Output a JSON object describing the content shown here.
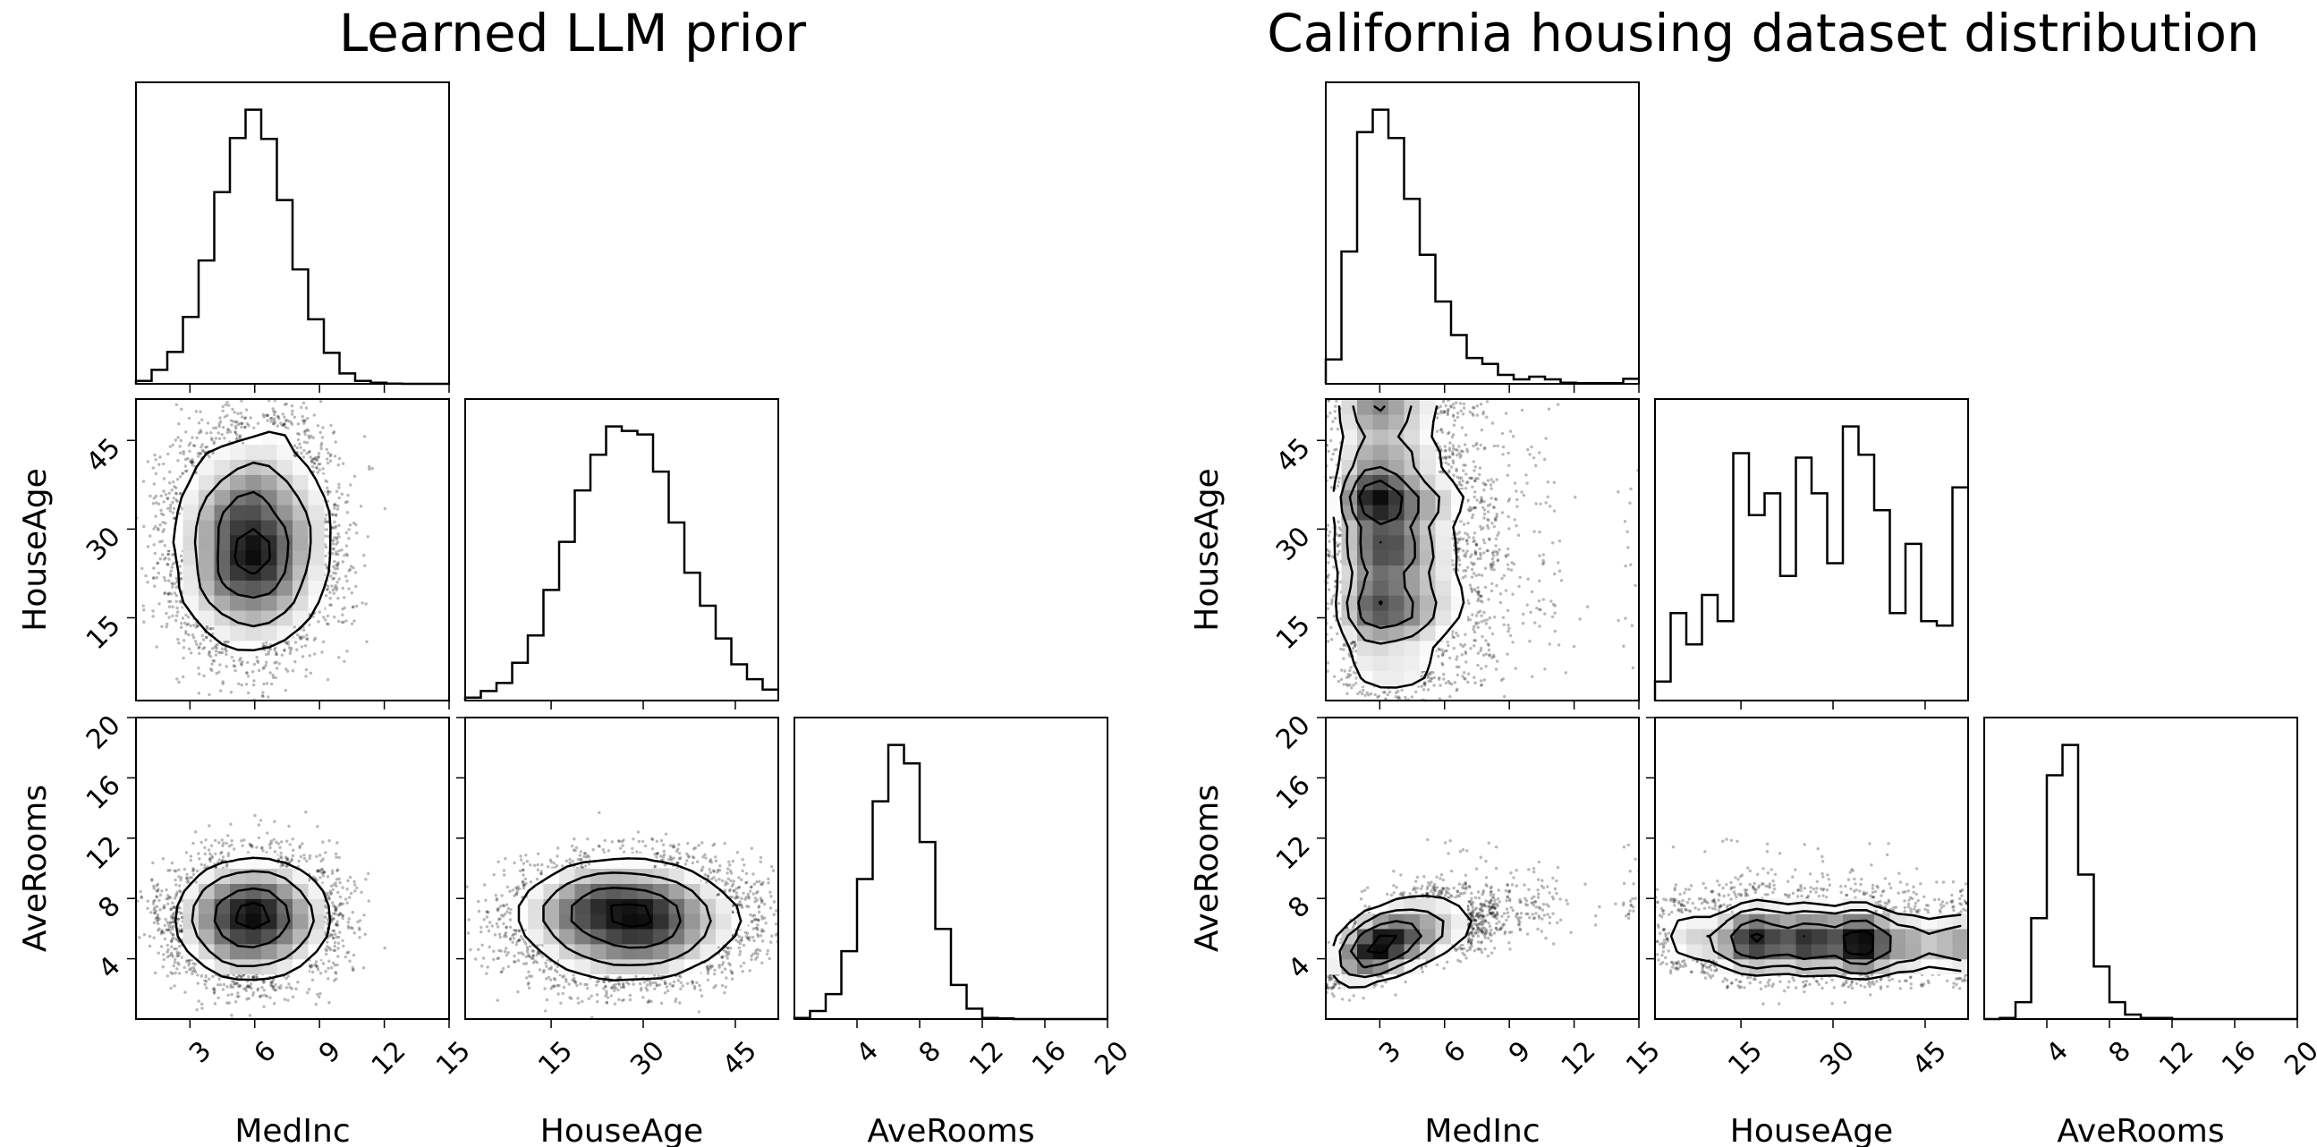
{
  "chart_data": [
    {
      "type": "corner",
      "title": "Learned LLM prior",
      "contour_levels_sigma": [
        0.5,
        1,
        1.5,
        2
      ],
      "variables": [
        {
          "name": "MedInc",
          "range": [
            0.5,
            15
          ],
          "ticks": [
            3,
            6,
            9,
            12,
            15
          ],
          "hist_counts": [
            10,
            47,
            107,
            225,
            415,
            645,
            827,
            922,
            824,
            618,
            385,
            217,
            104,
            35,
            10,
            4,
            1,
            0,
            0,
            0
          ]
        },
        {
          "name": "HouseAge",
          "range": [
            1,
            52
          ],
          "ticks": [
            15,
            30,
            45
          ],
          "hist_counts": [
            10,
            32,
            59,
            127,
            219,
            372,
            534,
            707,
            827,
            922,
            907,
            895,
            770,
            599,
            430,
            319,
            209,
            122,
            72,
            37
          ]
        },
        {
          "name": "AveRooms",
          "range": [
            0,
            20
          ],
          "ticks": [
            4,
            8,
            12,
            16,
            20
          ],
          "hist_counts": [
            4,
            27,
            84,
            229,
            472,
            734,
            924,
            862,
            597,
            304,
            115,
            35,
            4,
            2,
            0,
            0,
            0,
            0,
            0,
            0
          ]
        }
      ],
      "pairs": [
        {
          "x": "MedInc",
          "y": "HouseAge",
          "correlation": 0.0
        },
        {
          "x": "MedInc",
          "y": "AveRooms",
          "correlation": 0.0
        },
        {
          "x": "HouseAge",
          "y": "AveRooms",
          "correlation": 0.0
        }
      ]
    },
    {
      "type": "corner",
      "title": "California housing dataset distribution",
      "contour_levels_sigma": [
        0.5,
        1,
        1.5,
        2
      ],
      "variables": [
        {
          "name": "MedInc",
          "range": [
            0.5,
            15
          ],
          "ticks": [
            3,
            6,
            9,
            12,
            15
          ],
          "hist_counts": [
            82,
            445,
            847,
            922,
            827,
            622,
            434,
            277,
            164,
            87,
            67,
            30,
            15,
            24,
            15,
            4,
            2,
            2,
            2,
            17
          ]
        },
        {
          "name": "HouseAge",
          "range": [
            1,
            52
          ],
          "ticks": [
            15,
            30,
            45
          ],
          "hist_counts": [
            64,
            294,
            189,
            355,
            267,
            832,
            624,
            697,
            419,
            817,
            697,
            462,
            922,
            827,
            640,
            294,
            527,
            267,
            252,
            717
          ]
        },
        {
          "name": "AveRooms",
          "range": [
            0,
            20
          ],
          "ticks": [
            4,
            8,
            12,
            16,
            20
          ],
          "hist_counts": [
            0,
            4,
            57,
            340,
            822,
            924,
            487,
            177,
            57,
            15,
            4,
            4,
            0,
            0,
            0,
            0,
            0,
            0,
            0,
            0
          ]
        }
      ],
      "pairs": [
        {
          "x": "MedInc",
          "y": "HouseAge",
          "correlation": -0.1
        },
        {
          "x": "MedInc",
          "y": "AveRooms",
          "correlation": 0.65
        },
        {
          "x": "HouseAge",
          "y": "AveRooms",
          "correlation": -0.1
        }
      ]
    }
  ]
}
